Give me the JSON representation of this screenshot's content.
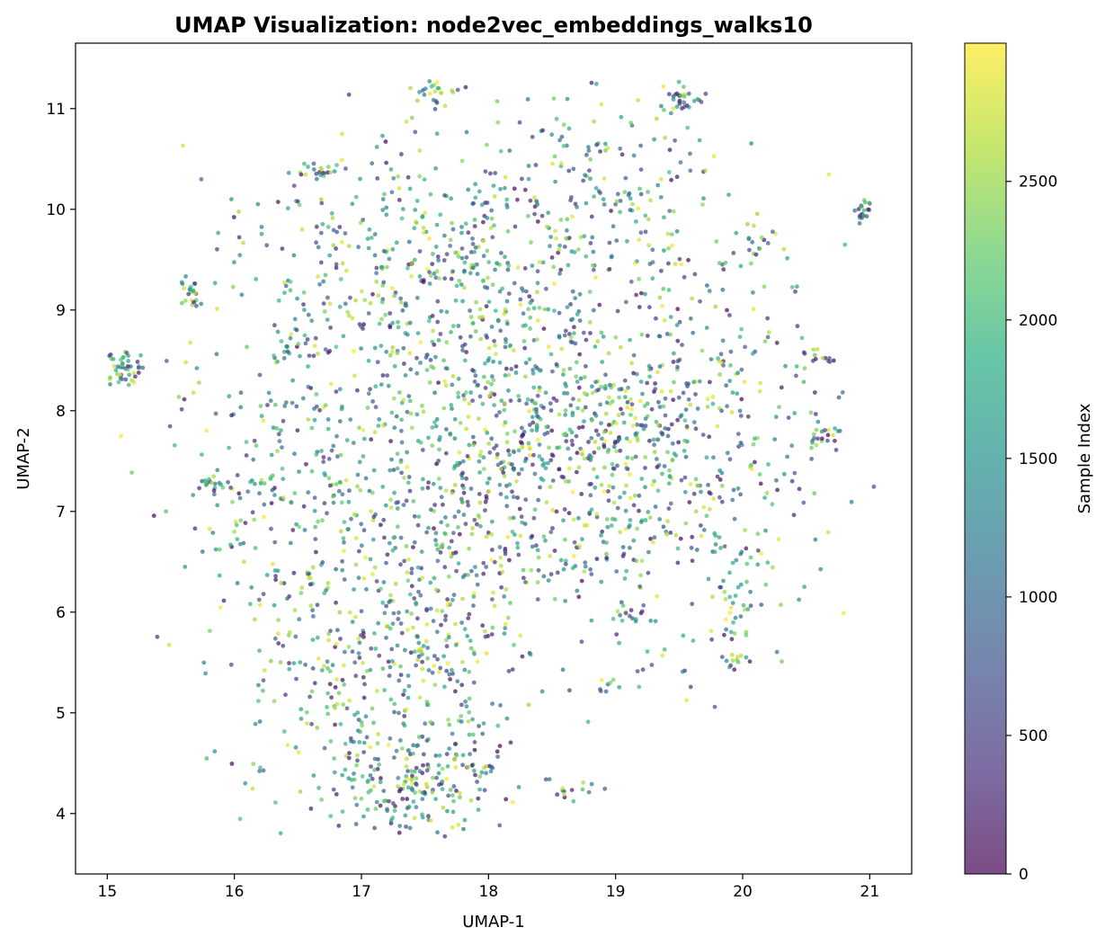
{
  "chart_data": {
    "type": "scatter",
    "title": "UMAP Visualization: node2vec_embeddings_walks10",
    "xlabel": "UMAP-1",
    "ylabel": "UMAP-2",
    "xlim": [
      14.75,
      21.33
    ],
    "ylim": [
      3.4,
      11.65
    ],
    "x_ticks": [
      "15",
      "16",
      "17",
      "18",
      "19",
      "20",
      "21"
    ],
    "y_ticks": [
      "4",
      "5",
      "6",
      "7",
      "8",
      "9",
      "10",
      "11"
    ],
    "grid": false,
    "colormap": "viridis",
    "point_alpha": 0.7,
    "colorbar": {
      "label": "Sample Index",
      "range": [
        0,
        2999
      ],
      "ticks": [
        "0",
        "500",
        "1000",
        "1500",
        "2000",
        "2500"
      ]
    },
    "clusters": [
      {
        "cx": 18.3,
        "cy": 7.8,
        "sx": 0.75,
        "sy": 0.9,
        "n": 900
      },
      {
        "cx": 17.3,
        "cy": 5.6,
        "sx": 0.55,
        "sy": 0.85,
        "n": 450
      },
      {
        "cx": 17.5,
        "cy": 9.5,
        "sx": 0.65,
        "sy": 0.6,
        "n": 350
      },
      {
        "cx": 19.6,
        "cy": 7.6,
        "sx": 0.55,
        "sy": 1.0,
        "n": 380
      },
      {
        "cx": 16.5,
        "cy": 7.3,
        "sx": 0.5,
        "sy": 1.1,
        "n": 300
      },
      {
        "cx": 17.4,
        "cy": 4.3,
        "sx": 0.35,
        "sy": 0.25,
        "n": 160
      },
      {
        "cx": 18.9,
        "cy": 10.3,
        "sx": 0.55,
        "sy": 0.45,
        "n": 160
      },
      {
        "cx": 15.15,
        "cy": 8.42,
        "sx": 0.08,
        "sy": 0.09,
        "n": 45
      },
      {
        "cx": 15.65,
        "cy": 9.17,
        "sx": 0.06,
        "sy": 0.07,
        "n": 22
      },
      {
        "cx": 16.65,
        "cy": 10.38,
        "sx": 0.09,
        "sy": 0.04,
        "n": 22
      },
      {
        "cx": 17.55,
        "cy": 11.17,
        "sx": 0.08,
        "sy": 0.07,
        "n": 22
      },
      {
        "cx": 19.55,
        "cy": 11.1,
        "sx": 0.1,
        "sy": 0.08,
        "n": 32
      },
      {
        "cx": 20.95,
        "cy": 9.97,
        "sx": 0.06,
        "sy": 0.06,
        "n": 22
      },
      {
        "cx": 20.65,
        "cy": 7.77,
        "sx": 0.08,
        "sy": 0.06,
        "n": 20
      },
      {
        "cx": 20.6,
        "cy": 8.55,
        "sx": 0.06,
        "sy": 0.05,
        "n": 12
      },
      {
        "cx": 15.85,
        "cy": 7.28,
        "sx": 0.1,
        "sy": 0.06,
        "n": 22
      },
      {
        "cx": 19.95,
        "cy": 6.0,
        "sx": 0.1,
        "sy": 0.3,
        "n": 32
      },
      {
        "cx": 19.95,
        "cy": 5.52,
        "sx": 0.06,
        "sy": 0.05,
        "n": 12
      },
      {
        "cx": 18.9,
        "cy": 5.3,
        "sx": 0.05,
        "sy": 0.05,
        "n": 8
      },
      {
        "cx": 19.1,
        "cy": 5.97,
        "sx": 0.07,
        "sy": 0.04,
        "n": 10
      },
      {
        "cx": 20.1,
        "cy": 9.7,
        "sx": 0.1,
        "sy": 0.1,
        "n": 18
      },
      {
        "cx": 16.4,
        "cy": 8.7,
        "sx": 0.07,
        "sy": 0.07,
        "n": 12
      },
      {
        "cx": 18.65,
        "cy": 4.25,
        "sx": 0.12,
        "sy": 0.08,
        "n": 14
      }
    ]
  }
}
